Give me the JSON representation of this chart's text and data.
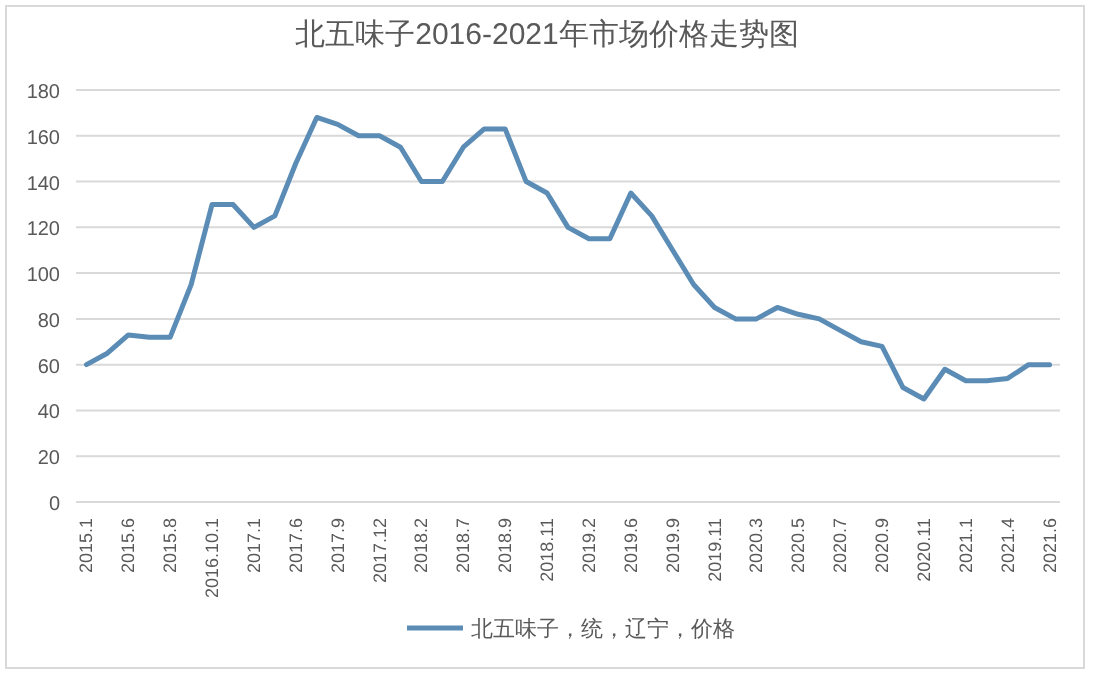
{
  "chart_data": {
    "type": "line",
    "title": "北五味子2016-2021年市场价格走势图",
    "categories": [
      "2015.1",
      null,
      "2015.6",
      null,
      "2015.8",
      null,
      "2016.10.1",
      null,
      "2017.1",
      null,
      "2017.6",
      null,
      "2017.9",
      null,
      "2017.12",
      null,
      "2018.2",
      null,
      "2018.7",
      null,
      "2018.9",
      null,
      "2018.11",
      null,
      "2019.2",
      null,
      "2019.6",
      null,
      "2019.9",
      null,
      "2019.11",
      null,
      "2020.3",
      null,
      "2020.5",
      null,
      "2020.7",
      null,
      "2020.9",
      null,
      "2020.11",
      null,
      "2021.1",
      null,
      "2021.4",
      null,
      "2021.6"
    ],
    "series": [
      {
        "name": "北五味子，统，辽宁，价格",
        "color": "#5b8cb6",
        "values": [
          60,
          65,
          73,
          72,
          72,
          95,
          130,
          130,
          120,
          125,
          148,
          168,
          165,
          160,
          160,
          155,
          140,
          140,
          155,
          163,
          163,
          140,
          135,
          120,
          115,
          115,
          135,
          125,
          110,
          95,
          85,
          80,
          80,
          85,
          82,
          80,
          75,
          70,
          68,
          50,
          45,
          58,
          53,
          53,
          54,
          60,
          60
        ]
      }
    ],
    "ylim": [
      0,
      180
    ],
    "yticks": [
      0,
      20,
      40,
      60,
      80,
      100,
      120,
      140,
      160,
      180
    ],
    "grid": "y",
    "legend": "bottom",
    "marker": "none",
    "line_style": "solid"
  }
}
